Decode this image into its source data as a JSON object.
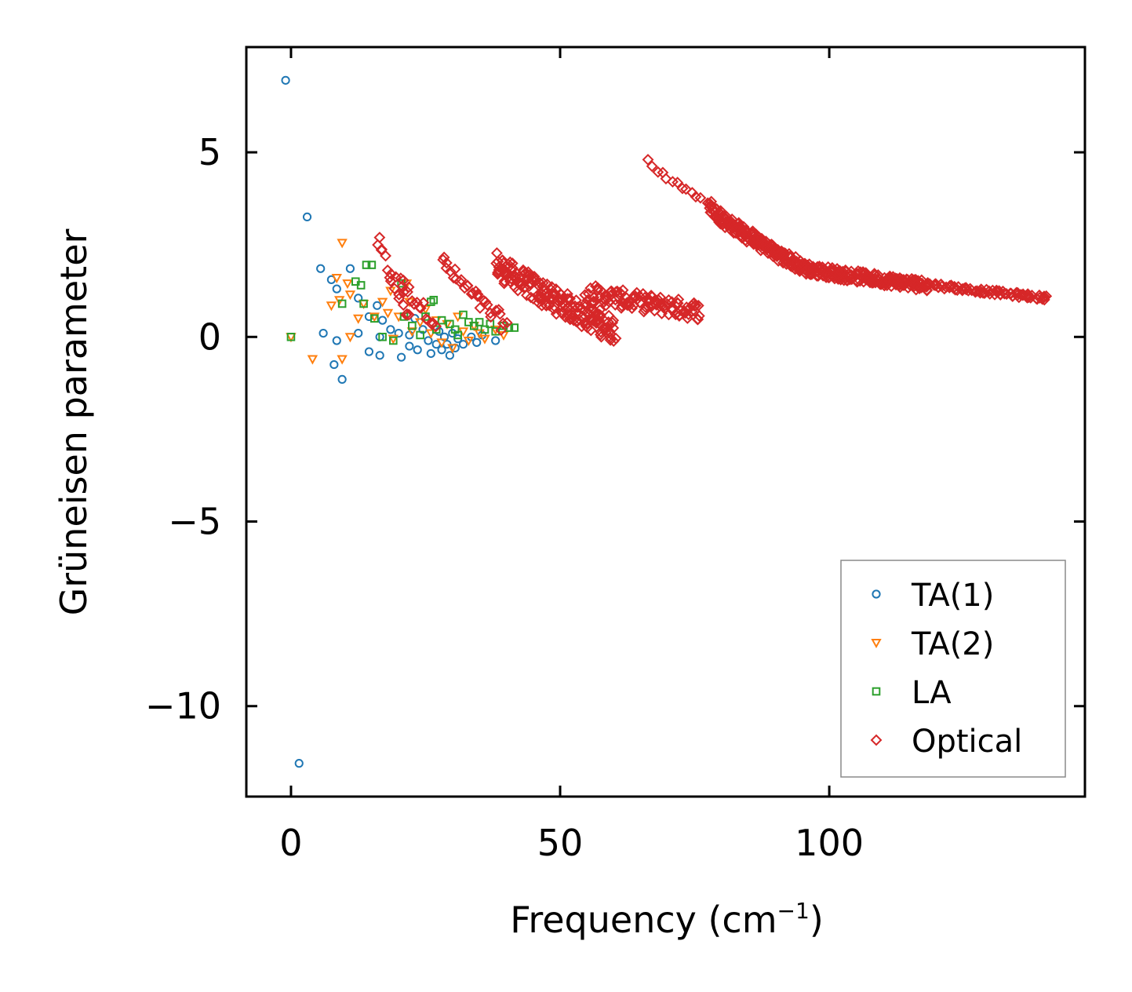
{
  "chart_data": {
    "type": "scatter",
    "title": "",
    "xlabel": "Frequency (cm",
    "xlabel_sup": "−1",
    "xlabel_close": ")",
    "ylabel": "Grüneisen parameter",
    "xlim": [
      -8.3,
      147.5
    ],
    "ylim": [
      -12.45,
      7.85
    ],
    "xticks": [
      0,
      50,
      100
    ],
    "xtick_labels": [
      "0",
      "50",
      "100"
    ],
    "yticks": [
      5,
      0,
      -5,
      -10
    ],
    "ytick_labels": [
      "5",
      "0",
      "−5",
      "−10"
    ],
    "legend_position": "lower-right",
    "series": [
      {
        "name": "TA(1)",
        "marker": "circle",
        "color": "#1f77b4",
        "points": [
          [
            -1,
            6.95
          ],
          [
            3,
            3.25
          ],
          [
            1.5,
            -11.55
          ],
          [
            5.5,
            1.85
          ],
          [
            7.5,
            1.55
          ],
          [
            8.5,
            1.3
          ],
          [
            6,
            0.1
          ],
          [
            8.5,
            -0.1
          ],
          [
            8,
            -0.75
          ],
          [
            9.5,
            -1.15
          ],
          [
            11,
            1.85
          ],
          [
            12.5,
            1.05
          ],
          [
            12.5,
            0.1
          ],
          [
            14.5,
            0.55
          ],
          [
            14.5,
            -0.4
          ],
          [
            16,
            0.85
          ],
          [
            16.5,
            0.0
          ],
          [
            16.5,
            -0.5
          ],
          [
            17,
            0.45
          ],
          [
            18.5,
            0.2
          ],
          [
            20,
            0.1
          ],
          [
            20.5,
            -0.55
          ],
          [
            22,
            0.05
          ],
          [
            22,
            -0.25
          ],
          [
            23,
            0.5
          ],
          [
            23.5,
            -0.35
          ],
          [
            24.5,
            0.2
          ],
          [
            25.5,
            -0.1
          ],
          [
            26,
            -0.45
          ],
          [
            27,
            -0.2
          ],
          [
            27.5,
            0.15
          ],
          [
            28,
            -0.35
          ],
          [
            28.5,
            0.0
          ],
          [
            29,
            -0.2
          ],
          [
            29.5,
            -0.5
          ],
          [
            30,
            0.1
          ],
          [
            30.5,
            -0.3
          ],
          [
            31,
            -0.05
          ],
          [
            32,
            -0.2
          ],
          [
            33.5,
            0.0
          ],
          [
            34.5,
            -0.15
          ],
          [
            35.5,
            0.05
          ],
          [
            38,
            -0.1
          ]
        ]
      },
      {
        "name": "TA(2)",
        "marker": "triangle-down",
        "color": "#ff7f0e",
        "points": [
          [
            0,
            0.0
          ],
          [
            4,
            -0.6
          ],
          [
            9.5,
            2.55
          ],
          [
            8.5,
            1.6
          ],
          [
            10.5,
            1.45
          ],
          [
            7.5,
            0.85
          ],
          [
            9,
            1.0
          ],
          [
            11,
            1.15
          ],
          [
            12.5,
            0.5
          ],
          [
            13.5,
            0.9
          ],
          [
            9.5,
            -0.6
          ],
          [
            11,
            0.0
          ],
          [
            15.5,
            0.55
          ],
          [
            17,
            0.95
          ],
          [
            18.5,
            1.25
          ],
          [
            18,
            0.65
          ],
          [
            19,
            -0.05
          ],
          [
            20,
            0.55
          ],
          [
            21.5,
            1.45
          ],
          [
            22,
            0.95
          ],
          [
            22.5,
            0.15
          ],
          [
            24,
            0.4
          ],
          [
            25,
            0.75
          ],
          [
            26,
            0.1
          ],
          [
            27,
            0.45
          ],
          [
            28,
            -0.15
          ],
          [
            29,
            0.35
          ],
          [
            30,
            -0.3
          ],
          [
            31,
            0.55
          ],
          [
            32,
            0.15
          ],
          [
            33,
            -0.1
          ],
          [
            34,
            0.3
          ],
          [
            35,
            0.1
          ],
          [
            36,
            -0.05
          ],
          [
            38,
            0.2
          ],
          [
            39.5,
            0.05
          ]
        ]
      },
      {
        "name": "LA",
        "marker": "square",
        "color": "#2ca02c",
        "points": [
          [
            0,
            0.0
          ],
          [
            9.5,
            0.9
          ],
          [
            12,
            1.5
          ],
          [
            13,
            1.4
          ],
          [
            14,
            1.95
          ],
          [
            15,
            1.95
          ],
          [
            13.5,
            0.9
          ],
          [
            15.5,
            0.5
          ],
          [
            17,
            0.0
          ],
          [
            19,
            -0.1
          ],
          [
            20.5,
            1.45
          ],
          [
            21,
            0.55
          ],
          [
            22.5,
            0.3
          ],
          [
            24,
            0.05
          ],
          [
            25,
            0.55
          ],
          [
            26,
            0.95
          ],
          [
            26.5,
            1.0
          ],
          [
            27,
            0.2
          ],
          [
            28,
            0.45
          ],
          [
            29.5,
            0.35
          ],
          [
            30.5,
            0.2
          ],
          [
            31,
            0.05
          ],
          [
            32,
            0.6
          ],
          [
            33,
            0.4
          ],
          [
            34,
            0.3
          ],
          [
            35,
            0.4
          ],
          [
            36,
            0.2
          ],
          [
            37,
            0.35
          ],
          [
            38,
            0.15
          ],
          [
            39.5,
            0.3
          ],
          [
            40.5,
            0.25
          ],
          [
            41.5,
            0.25
          ]
        ]
      },
      {
        "name": "Optical",
        "marker": "diamond",
        "color": "#d62728",
        "curves": [
          {
            "x_start": 16,
            "x_end": 22,
            "y_start": 2.6,
            "y_end": 0.6,
            "count": 18,
            "spread": 0.55
          },
          {
            "x_start": 20,
            "x_end": 27,
            "y_start": 1.6,
            "y_end": 0.4,
            "count": 16,
            "spread": 0.4
          },
          {
            "x_start": 28,
            "x_end": 40,
            "y_start": 2.1,
            "y_end": 0.3,
            "count": 30,
            "spread": 0.45
          },
          {
            "x_start": 38,
            "x_end": 60,
            "y_start": 2.0,
            "y_end": 0.2,
            "count": 180,
            "spread": 0.7
          },
          {
            "x_start": 55,
            "x_end": 76,
            "y_start": 1.2,
            "y_end": 0.7,
            "count": 110,
            "spread": 0.5
          },
          {
            "x_start": 66.5,
            "x_end": 78,
            "y_start": 4.75,
            "y_end": 3.6,
            "count": 14,
            "spread": 0.15
          },
          {
            "x_start": 78,
            "x_end": 96,
            "y_start": 3.5,
            "y_end": 1.8,
            "count": 200,
            "spread": 0.35
          },
          {
            "x_start": 96,
            "x_end": 118,
            "y_start": 1.85,
            "y_end": 1.4,
            "count": 180,
            "spread": 0.3
          },
          {
            "x_start": 118,
            "x_end": 140.5,
            "y_start": 1.45,
            "y_end": 1.05,
            "count": 80,
            "spread": 0.12
          }
        ]
      }
    ]
  }
}
